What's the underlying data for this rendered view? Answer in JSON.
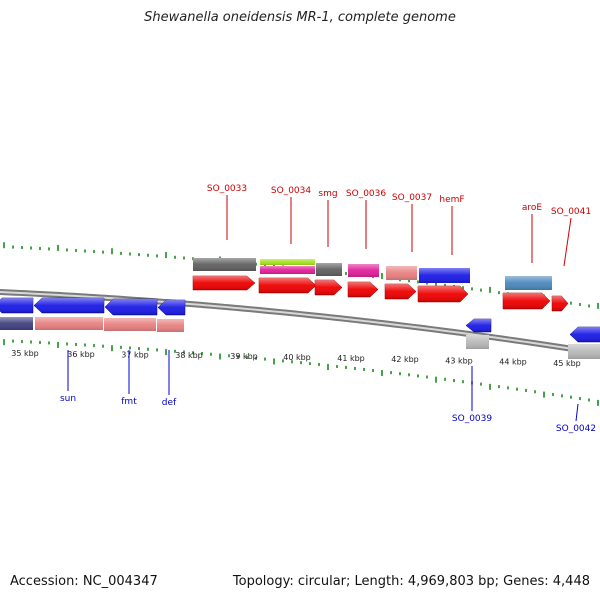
{
  "title": "Shewanella oneidensis MR-1, complete genome",
  "footer": {
    "accession": "Accession: NC_004347",
    "summary": "Topology: circular; Length: 4,969,803 bp; Genes: 4,448"
  },
  "colors": {
    "top_label": "#cc0000",
    "bottom_label": "#0000cc",
    "tick": "#1a8a1a",
    "backbone": "#7a7a7a"
  },
  "scale_labels": [
    "35 kbp",
    "36 kbp",
    "37 kbp",
    "38 kbp",
    "39 kbp",
    "40 kbp",
    "41 kbp",
    "42 kbp",
    "43 kbp",
    "44 kbp",
    "45 kbp"
  ],
  "top_gene_labels": [
    "SO_0033",
    "SO_0034",
    "smg",
    "SO_0036",
    "SO_0037",
    "hemF",
    "aroE",
    "SO_0041"
  ],
  "bottom_gene_labels": [
    "sun",
    "fmt",
    "def",
    "SO_0039",
    "SO_0042"
  ]
}
